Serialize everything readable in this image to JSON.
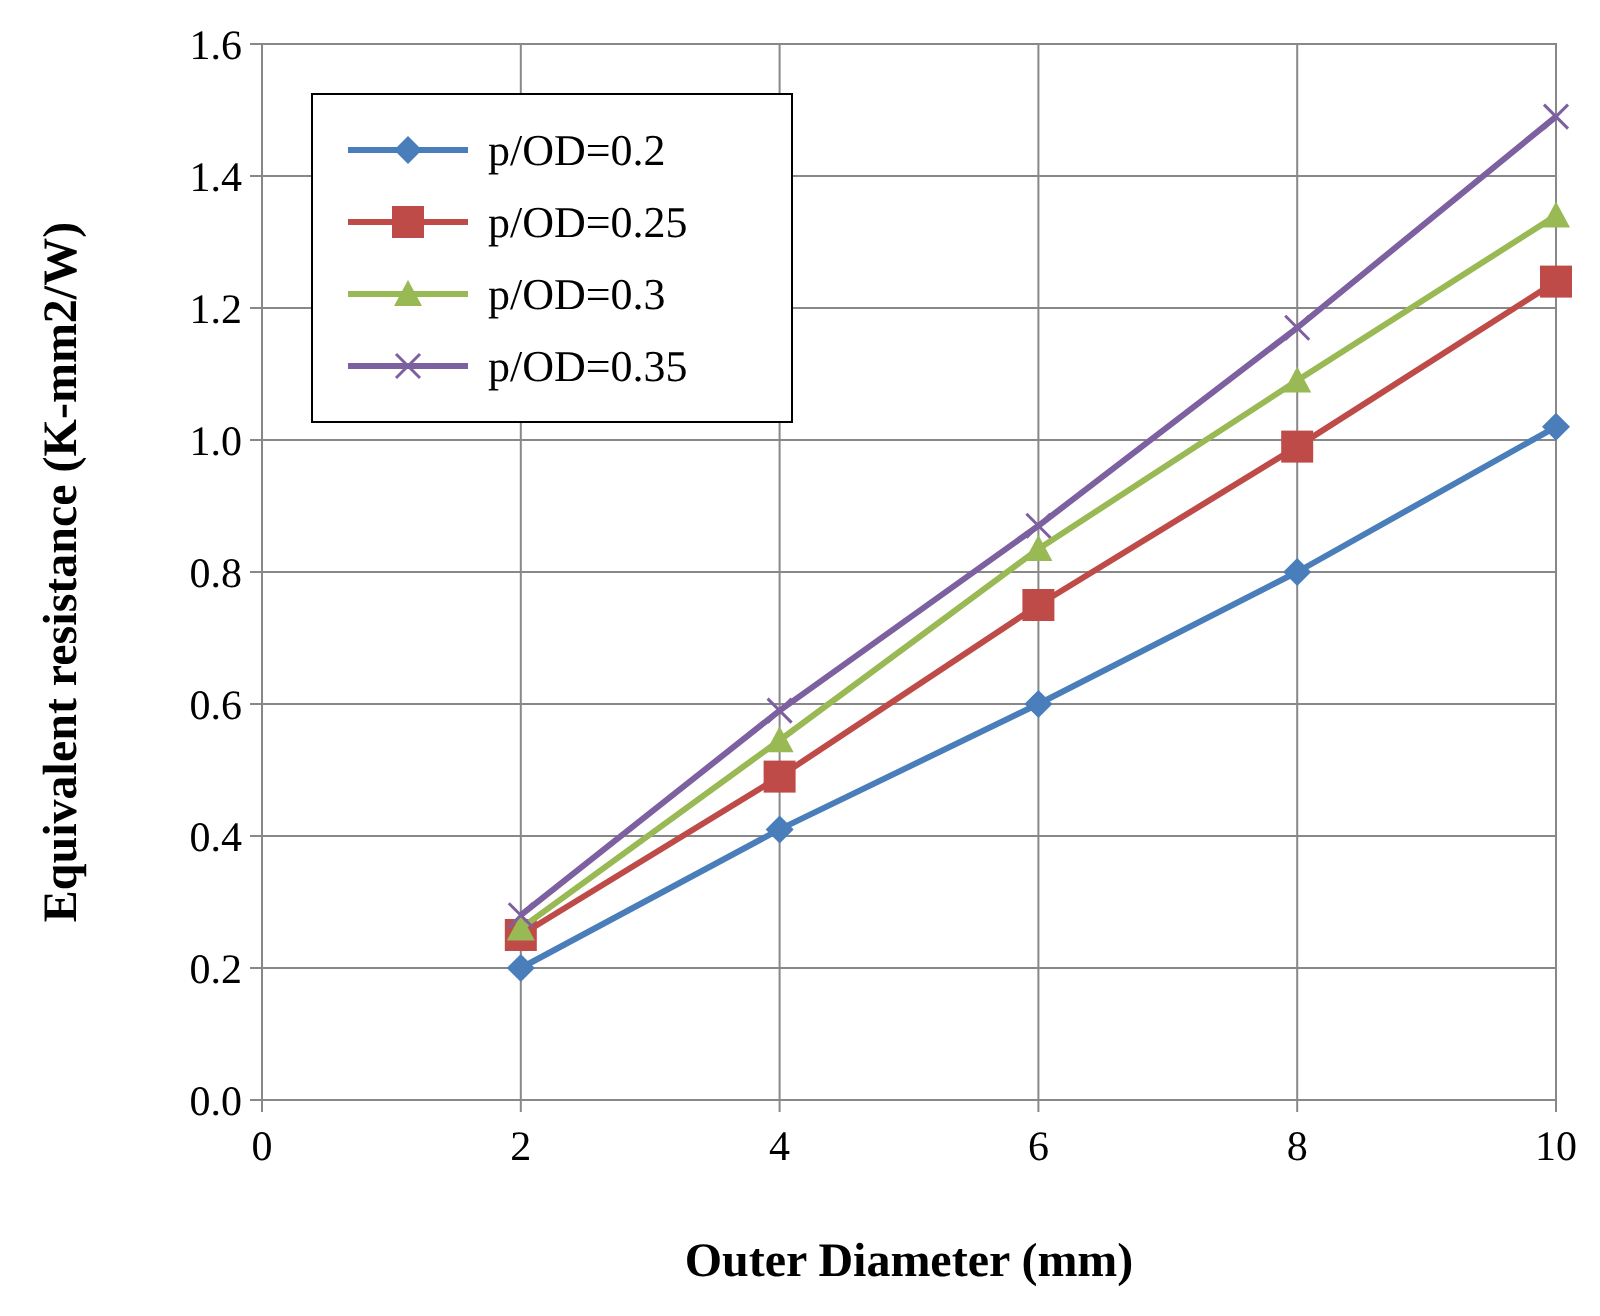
{
  "chart_data": {
    "type": "line",
    "xlabel": "Outer Diameter (mm)",
    "ylabel": "Equivalent resistance (K-mm2/W)",
    "x": [
      2,
      4,
      6,
      8,
      10
    ],
    "xlim": [
      0,
      10
    ],
    "xticks": [
      0,
      2,
      4,
      6,
      8,
      10
    ],
    "ylim": [
      0,
      1.6
    ],
    "yticks": [
      {
        "value": 0,
        "label": "0.0"
      },
      0.2,
      0.4,
      0.6,
      0.8,
      {
        "value": 1,
        "label": "1.0"
      },
      1.2,
      1.4,
      1.6
    ],
    "grid": true,
    "legend": "top left",
    "line_style": "solid",
    "series": [
      {
        "name": "p/OD=0.2",
        "color": "#4a7ebb",
        "marker": "diamond",
        "values": [
          0.2,
          0.41,
          0.6,
          0.8,
          1.02
        ]
      },
      {
        "name": "p/OD=0.25",
        "color": "#be4b48",
        "marker": "square",
        "values": [
          0.25,
          0.49,
          0.75,
          0.99,
          1.24
        ]
      },
      {
        "name": "p/OD=0.3",
        "color": "#98b954",
        "marker": "triangle",
        "values": [
          0.26,
          0.545,
          0.835,
          1.09,
          1.34
        ]
      },
      {
        "name": "p/OD=0.35",
        "color": "#7d60a0",
        "marker": "cross",
        "values": [
          0.28,
          0.59,
          0.87,
          1.17,
          1.49
        ]
      }
    ]
  }
}
